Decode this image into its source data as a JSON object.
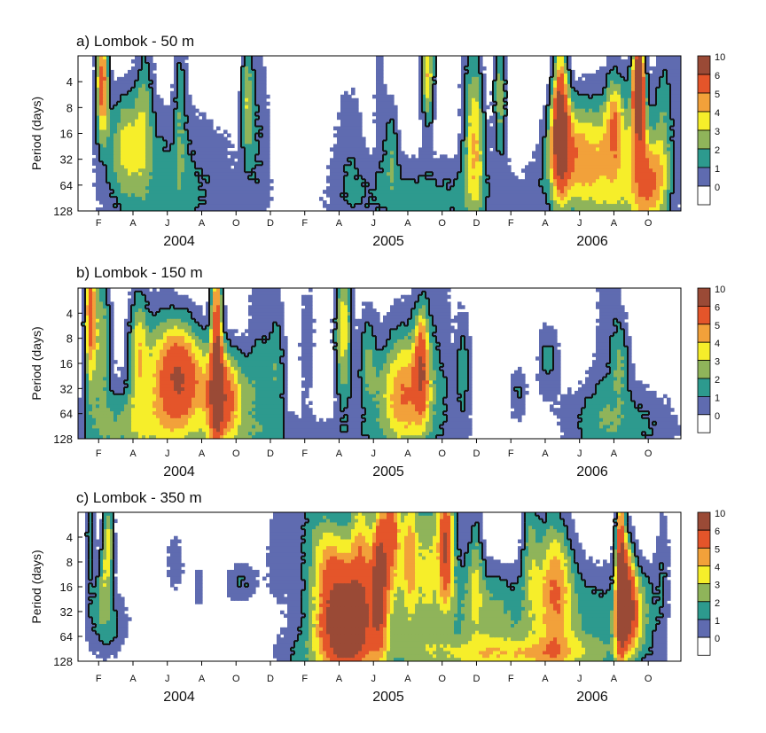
{
  "chart_data": [
    {
      "type": "heatmap",
      "title": "a) Lombok - 50 m",
      "ylabel": "Period (days)",
      "yticks": [
        "4",
        "8",
        "16",
        "32",
        "64",
        "128"
      ],
      "ylim": [
        2,
        128
      ],
      "yscale": "log2",
      "xticks": [
        "F",
        "A",
        "J",
        "A",
        "O",
        "D",
        "F",
        "A",
        "J",
        "A",
        "O",
        "D",
        "F",
        "A",
        "J",
        "A",
        "O"
      ],
      "years": [
        "2004",
        "2005",
        "2006"
      ],
      "colorbar": {
        "ticks": [
          "10",
          "6",
          "5",
          "4",
          "3",
          "2",
          "1",
          "0"
        ]
      },
      "blobs": [
        {
          "t": 0.15,
          "p": 64,
          "v": 2.4,
          "wx": 0.12,
          "wy": 0.55
        },
        {
          "t": 0.08,
          "p": 20,
          "v": 3.1,
          "wx": 0.03,
          "wy": 0.35
        },
        {
          "t": 0.04,
          "p": 4,
          "v": 6.5,
          "wx": 0.01,
          "wy": 0.35
        },
        {
          "t": 0.11,
          "p": 6,
          "v": 2.2,
          "wx": 0.015,
          "wy": 0.5
        },
        {
          "t": 0.17,
          "p": 5,
          "v": 2.0,
          "wx": 0.01,
          "wy": 0.55
        },
        {
          "t": 0.28,
          "p": 6,
          "v": 3.2,
          "wx": 0.01,
          "wy": 0.4
        },
        {
          "t": 0.3,
          "p": 12,
          "v": 1.6,
          "wx": 0.02,
          "wy": 0.6
        },
        {
          "t": 0.45,
          "p": 20,
          "v": 1.5,
          "wx": 0.03,
          "wy": 0.5
        },
        {
          "t": 0.52,
          "p": 20,
          "v": 2.4,
          "wx": 0.012,
          "wy": 0.3
        },
        {
          "t": 0.5,
          "p": 5,
          "v": 1.6,
          "wx": 0.01,
          "wy": 0.5
        },
        {
          "t": 0.58,
          "p": 3,
          "v": 5.0,
          "wx": 0.012,
          "wy": 0.35
        },
        {
          "t": 0.66,
          "p": 18,
          "v": 3.6,
          "wx": 0.015,
          "wy": 0.45
        },
        {
          "t": 0.7,
          "p": 6,
          "v": 3.5,
          "wx": 0.012,
          "wy": 0.4
        },
        {
          "t": 0.65,
          "p": 6,
          "v": 1.8,
          "wx": 0.02,
          "wy": 0.8
        },
        {
          "t": 0.66,
          "p": 100,
          "v": 1.4,
          "wx": 0.28,
          "wy": 0.3
        },
        {
          "t": 0.55,
          "p": 80,
          "v": 1.2,
          "wx": 0.1,
          "wy": 0.25
        },
        {
          "t": 0.8,
          "p": 8,
          "v": 6.0,
          "wx": 0.012,
          "wy": 0.5
        },
        {
          "t": 0.83,
          "p": 28,
          "v": 4.4,
          "wx": 0.05,
          "wy": 0.35
        },
        {
          "t": 0.8,
          "p": 18,
          "v": 4.0,
          "wx": 0.02,
          "wy": 0.3
        },
        {
          "t": 0.89,
          "p": 11,
          "v": 3.2,
          "wx": 0.015,
          "wy": 0.3
        },
        {
          "t": 0.93,
          "p": 6,
          "v": 5.5,
          "wx": 0.012,
          "wy": 0.4
        },
        {
          "t": 0.93,
          "p": 4,
          "v": 6.2,
          "wx": 0.008,
          "wy": 0.3
        },
        {
          "t": 0.9,
          "p": 40,
          "v": 3.0,
          "wx": 0.06,
          "wy": 0.6
        },
        {
          "t": 0.95,
          "p": 60,
          "v": 4.5,
          "wx": 0.03,
          "wy": 0.3
        },
        {
          "t": 0.97,
          "p": 8,
          "v": 2.0,
          "wx": 0.015,
          "wy": 0.5
        },
        {
          "t": 1.0,
          "p": 6,
          "v": 1.4,
          "wx": 0.02,
          "wy": 0.5
        }
      ]
    },
    {
      "type": "heatmap",
      "title": "b) Lombok - 150 m",
      "ylabel": "Period (days)",
      "yticks": [
        "4",
        "8",
        "16",
        "32",
        "64",
        "128"
      ],
      "ylim": [
        2,
        128
      ],
      "yscale": "log2",
      "xticks": [
        "F",
        "A",
        "J",
        "A",
        "O",
        "D",
        "F",
        "A",
        "J",
        "A",
        "O",
        "D",
        "F",
        "A",
        "J",
        "A",
        "O"
      ],
      "years": [
        "2004",
        "2005",
        "2006"
      ],
      "colorbar": {
        "ticks": [
          "10",
          "6",
          "5",
          "4",
          "3",
          "2",
          "1",
          "0"
        ]
      },
      "blobs": [
        {
          "t": 0.08,
          "p": 85,
          "v": 2.5,
          "wx": 0.09,
          "wy": 0.25
        },
        {
          "t": 0.02,
          "p": 4,
          "v": 6.5,
          "wx": 0.01,
          "wy": 0.5
        },
        {
          "t": 0.04,
          "p": 8,
          "v": 3.5,
          "wx": 0.015,
          "wy": 0.5
        },
        {
          "t": 0.1,
          "p": 10,
          "v": 3.2,
          "wx": 0.015,
          "wy": 0.4
        },
        {
          "t": 0.17,
          "p": 22,
          "v": 6.5,
          "wx": 0.04,
          "wy": 0.35
        },
        {
          "t": 0.13,
          "p": 18,
          "v": 2.4,
          "wx": 0.05,
          "wy": 0.5
        },
        {
          "t": 0.23,
          "p": 8,
          "v": 6.6,
          "wx": 0.01,
          "wy": 0.7
        },
        {
          "t": 0.24,
          "p": 40,
          "v": 5.0,
          "wx": 0.03,
          "wy": 0.3
        },
        {
          "t": 0.26,
          "p": 40,
          "v": 2.2,
          "wx": 0.07,
          "wy": 0.35
        },
        {
          "t": 0.33,
          "p": 14,
          "v": 2.2,
          "wx": 0.015,
          "wy": 0.5
        },
        {
          "t": 0.3,
          "p": 5,
          "v": 1.5,
          "wx": 0.02,
          "wy": 0.8
        },
        {
          "t": 0.38,
          "p": 8,
          "v": 1.6,
          "wx": 0.015,
          "wy": 0.5
        },
        {
          "t": 0.44,
          "p": 6,
          "v": 4.6,
          "wx": 0.015,
          "wy": 0.5
        },
        {
          "t": 0.48,
          "p": 12,
          "v": 2.4,
          "wx": 0.015,
          "wy": 0.35
        },
        {
          "t": 0.54,
          "p": 25,
          "v": 3.8,
          "wx": 0.04,
          "wy": 0.45
        },
        {
          "t": 0.55,
          "p": 45,
          "v": 2.5,
          "wx": 0.08,
          "wy": 0.3
        },
        {
          "t": 0.57,
          "p": 14,
          "v": 5.0,
          "wx": 0.012,
          "wy": 0.35
        },
        {
          "t": 0.64,
          "p": 16,
          "v": 2.2,
          "wx": 0.012,
          "wy": 0.35
        },
        {
          "t": 0.6,
          "p": 3,
          "v": 1.4,
          "wx": 0.03,
          "wy": 0.6
        },
        {
          "t": 0.73,
          "p": 36,
          "v": 2.0,
          "wx": 0.015,
          "wy": 0.2
        },
        {
          "t": 0.78,
          "p": 14,
          "v": 2.3,
          "wx": 0.02,
          "wy": 0.25
        },
        {
          "t": 0.9,
          "p": 14,
          "v": 2.1,
          "wx": 0.015,
          "wy": 0.25
        },
        {
          "t": 0.87,
          "p": 80,
          "v": 2.6,
          "wx": 0.07,
          "wy": 0.3
        },
        {
          "t": 0.88,
          "p": 4,
          "v": 1.5,
          "wx": 0.03,
          "wy": 0.6
        },
        {
          "t": 0.35,
          "p": 120,
          "v": 1.3,
          "wx": 0.3,
          "wy": 0.15
        },
        {
          "t": 0.96,
          "p": 100,
          "v": 1.3,
          "wx": 0.06,
          "wy": 0.3
        }
      ]
    },
    {
      "type": "heatmap",
      "title": "c) Lombok - 350 m",
      "ylabel": "Period (days)",
      "yticks": [
        "4",
        "8",
        "16",
        "32",
        "64",
        "128"
      ],
      "ylim": [
        2,
        128
      ],
      "yscale": "log2",
      "xticks": [
        "F",
        "A",
        "J",
        "A",
        "O",
        "D",
        "F",
        "A",
        "J",
        "A",
        "O",
        "D",
        "F",
        "A",
        "J",
        "A",
        "O"
      ],
      "years": [
        "2004",
        "2005",
        "2006"
      ],
      "colorbar": {
        "ticks": [
          "10",
          "6",
          "5",
          "4",
          "3",
          "2",
          "1",
          "0"
        ]
      },
      "blobs": [
        {
          "t": 0.05,
          "p": 45,
          "v": 2.4,
          "wx": 0.035,
          "wy": 0.25
        },
        {
          "t": 0.04,
          "p": 16,
          "v": 2.1,
          "wx": 0.01,
          "wy": 0.25
        },
        {
          "t": 0.02,
          "p": 4,
          "v": 2.5,
          "wx": 0.01,
          "wy": 0.5
        },
        {
          "t": 0.05,
          "p": 5,
          "v": 4.5,
          "wx": 0.01,
          "wy": 0.3
        },
        {
          "t": 0.16,
          "p": 8,
          "v": 1.4,
          "wx": 0.02,
          "wy": 0.3
        },
        {
          "t": 0.2,
          "p": 16,
          "v": 2.0,
          "wx": 0.006,
          "wy": 0.15
        },
        {
          "t": 0.27,
          "p": 14,
          "v": 2.1,
          "wx": 0.03,
          "wy": 0.15
        },
        {
          "t": 0.33,
          "p": 6,
          "v": 1.4,
          "wx": 0.02,
          "wy": 0.4
        },
        {
          "t": 0.37,
          "p": 128,
          "v": 1.4,
          "wx": 0.05,
          "wy": 0.2
        },
        {
          "t": 0.44,
          "p": 55,
          "v": 6.5,
          "wx": 0.04,
          "wy": 0.3
        },
        {
          "t": 0.46,
          "p": 40,
          "v": 2.8,
          "wx": 0.08,
          "wy": 0.45
        },
        {
          "t": 0.47,
          "p": 24,
          "v": 2.2,
          "wx": 0.06,
          "wy": 0.4
        },
        {
          "t": 0.5,
          "p": 10,
          "v": 6.5,
          "wx": 0.012,
          "wy": 0.45
        },
        {
          "t": 0.42,
          "p": 10,
          "v": 2.6,
          "wx": 0.03,
          "wy": 0.3
        },
        {
          "t": 0.47,
          "p": 4,
          "v": 3.6,
          "wx": 0.02,
          "wy": 0.5
        },
        {
          "t": 0.55,
          "p": 6,
          "v": 4.2,
          "wx": 0.015,
          "wy": 0.5
        },
        {
          "t": 0.52,
          "p": 3,
          "v": 6.2,
          "wx": 0.015,
          "wy": 0.4
        },
        {
          "t": 0.58,
          "p": 14,
          "v": 2.4,
          "wx": 0.02,
          "wy": 0.5
        },
        {
          "t": 0.61,
          "p": 5,
          "v": 6.0,
          "wx": 0.012,
          "wy": 0.4
        },
        {
          "t": 0.66,
          "p": 8,
          "v": 2.4,
          "wx": 0.012,
          "wy": 0.35
        },
        {
          "t": 0.68,
          "p": 28,
          "v": 3.0,
          "wx": 0.08,
          "wy": 0.3
        },
        {
          "t": 0.75,
          "p": 5,
          "v": 2.6,
          "wx": 0.015,
          "wy": 0.5
        },
        {
          "t": 0.79,
          "p": 14,
          "v": 5.0,
          "wx": 0.03,
          "wy": 0.5
        },
        {
          "t": 0.72,
          "p": 110,
          "v": 3.0,
          "wx": 0.17,
          "wy": 0.12
        },
        {
          "t": 0.7,
          "p": 90,
          "v": 1.3,
          "wx": 0.25,
          "wy": 0.22
        },
        {
          "t": 0.85,
          "p": 30,
          "v": 2.2,
          "wx": 0.07,
          "wy": 0.35
        },
        {
          "t": 0.9,
          "p": 8,
          "v": 6.5,
          "wx": 0.008,
          "wy": 0.7
        },
        {
          "t": 0.91,
          "p": 18,
          "v": 6.3,
          "wx": 0.015,
          "wy": 0.35
        },
        {
          "t": 0.93,
          "p": 30,
          "v": 3.2,
          "wx": 0.03,
          "wy": 0.3
        },
        {
          "t": 0.91,
          "p": 45,
          "v": 2.3,
          "wx": 0.018,
          "wy": 0.15
        },
        {
          "t": 0.97,
          "p": 8,
          "v": 1.8,
          "wx": 0.012,
          "wy": 0.5
        },
        {
          "t": 0.4,
          "p": 3,
          "v": 2.2,
          "wx": 0.05,
          "wy": 0.5
        },
        {
          "t": 0.6,
          "p": 3,
          "v": 2.2,
          "wx": 0.05,
          "wy": 0.5
        }
      ]
    }
  ],
  "colors": {
    "levels": [
      "#ffffff",
      "#5f6bb0",
      "#2d9a8e",
      "#8fb45a",
      "#f6ee2a",
      "#f2a13a",
      "#e4552a",
      "#9a4a36"
    ],
    "contour": "#111111",
    "axis": "#000000"
  }
}
